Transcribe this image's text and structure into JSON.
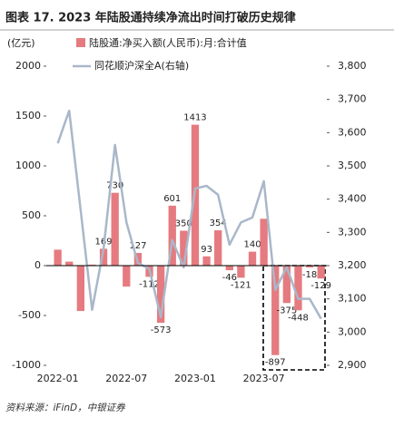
{
  "title": "图表 17. 2023 年陆股通持续净流出时间打破历史规律",
  "source": "资料来源：iFinD，中银证券",
  "chart_data": {
    "type": "bar_line",
    "y_unit": "(亿元)",
    "categories": [
      "2022-01",
      null,
      null,
      null,
      null,
      null,
      "2022-07",
      null,
      null,
      null,
      null,
      null,
      "2023-01",
      null,
      null,
      null,
      null,
      null,
      "2023-07",
      null,
      null,
      null,
      null,
      null
    ],
    "series": [
      {
        "name": "陆股通:净买入额(人民币):月:合计值",
        "color": "#e57b80",
        "type": "bar",
        "axis": "y",
        "values": [
          160,
          40,
          -455,
          10,
          169,
          730,
          -210,
          127,
          -112,
          -573,
          601,
          350,
          1413,
          93,
          354,
          -46,
          -121,
          140,
          470,
          -897,
          -375,
          -448,
          -18,
          -129
        ],
        "value_labels": [
          null,
          null,
          null,
          null,
          169,
          730,
          null,
          127,
          -112,
          -573,
          601,
          350,
          1413,
          93,
          354,
          -46,
          -121,
          140,
          null,
          -897,
          -375,
          -448,
          -18,
          -129
        ]
      },
      {
        "name": "同花顺沪深全A(右轴)",
        "color": "#a9b7c9",
        "type": "line",
        "axis": "y2",
        "values": [
          3568,
          3666,
          3367,
          3067,
          3250,
          3563,
          3330,
          3208,
          3190,
          3045,
          3277,
          3195,
          3432,
          3440,
          3413,
          3263,
          3330,
          3345,
          3454,
          3127,
          3195,
          3100,
          3100,
          3040
        ]
      }
    ],
    "ylim": [
      -1000,
      2000
    ],
    "yticks": [
      -1000,
      -500,
      0,
      500,
      1000,
      1500,
      2000
    ],
    "y2lim": [
      2900,
      3800
    ],
    "y2ticks": [
      {
        "value": 2900,
        "label": "2,900"
      },
      {
        "value": 3000,
        "label": "3,000"
      },
      {
        "value": 3100,
        "label": "3,100"
      },
      {
        "value": 3200,
        "label": "3,200"
      },
      {
        "value": 3300,
        "label": "3,300"
      },
      {
        "value": 3400,
        "label": "3,400"
      },
      {
        "value": 3500,
        "label": "3,500"
      },
      {
        "value": 3600,
        "label": "3,600"
      },
      {
        "value": 3700,
        "label": "3,700"
      },
      {
        "value": 3800,
        "label": "3,800"
      }
    ]
  }
}
